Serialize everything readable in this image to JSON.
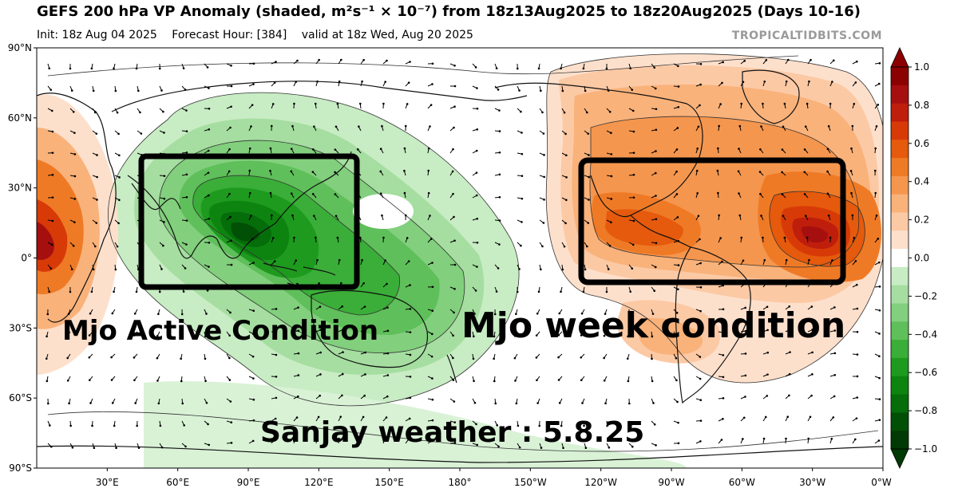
{
  "header": {
    "title": "GEFS 200 hPa VP Anomaly (shaded, m²s⁻¹ × 10⁻⁷) from 18z13Aug2025 to 18z20Aug2025 (Days 10-16)",
    "init": "Init: 18z Aug 04 2025",
    "forecast_hour": "Forecast Hour: [384]",
    "valid": "valid at 18z Wed, Aug 20 2025",
    "credit": "TROPICALTIDBITS.COM"
  },
  "map": {
    "lat_labels": [
      "90°N",
      "60°N",
      "30°N",
      "0°",
      "30°S",
      "60°S",
      "90°S"
    ],
    "lon_labels": [
      "30°E",
      "60°E",
      "90°E",
      "120°E",
      "150°E",
      "180°",
      "150°W",
      "120°W",
      "90°W",
      "60°W",
      "30°W",
      "0°W"
    ],
    "lon_values": [
      30,
      60,
      90,
      120,
      150,
      180,
      210,
      240,
      270,
      300,
      330,
      360
    ],
    "lat_values": [
      90,
      60,
      30,
      0,
      -30,
      -60,
      -90
    ]
  },
  "colorbar": {
    "ticks": [
      "1.0",
      "0.8",
      "0.6",
      "0.4",
      "0.2",
      "0.0",
      "−0.2",
      "−0.4",
      "−0.6",
      "−0.8",
      "−1.0"
    ],
    "levels": [
      1.0,
      0.9,
      0.8,
      0.7,
      0.6,
      0.5,
      0.4,
      0.3,
      0.2,
      0.1,
      -0.1,
      -0.2,
      -0.3,
      -0.4,
      -0.5,
      -0.6,
      -0.7,
      -0.8,
      -0.9,
      -1.0
    ],
    "colors": [
      "#8b0000",
      "#a50f0f",
      "#be1e0b",
      "#d73a07",
      "#e55a0c",
      "#ef7a26",
      "#f5964e",
      "#f9b27a",
      "#fcc9a5",
      "#fde0cc",
      "#ffffff",
      "#c8ecc4",
      "#a5dea0",
      "#82cf7d",
      "#5fbf5a",
      "#3aae38",
      "#1e9a1e",
      "#0d8410",
      "#056d0a",
      "#024f06",
      "#013a04"
    ]
  },
  "annotations": {
    "active": "Mjo Active Condition",
    "week": "Mjo week condition",
    "signature": "Sanjay weather : 5.8.25"
  }
}
